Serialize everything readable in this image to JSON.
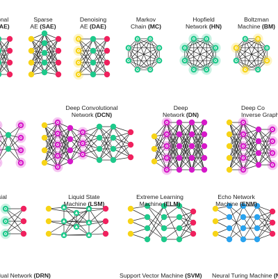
{
  "colors": {
    "input": "#f7d417",
    "hidden": "#1ec98b",
    "output": "#f0215e",
    "memory": "#2aa3ef",
    "kernel": "#d619c9",
    "edge": "#222222",
    "bg": "#ffffff"
  },
  "networks": [
    {
      "key": "ae_partial",
      "line1": "onal",
      "line2": "(AE)"
    },
    {
      "key": "sae",
      "line1": "Sparse",
      "line2_text": "AE ",
      "line2_abbr": "(SAE)"
    },
    {
      "key": "dae",
      "line1": "Denoising",
      "line2_text": "AE ",
      "line2_abbr": "(DAE)"
    },
    {
      "key": "mc",
      "line1": "Markov",
      "line2_text": "Chain ",
      "line2_abbr": "(MC)"
    },
    {
      "key": "hn",
      "line1": "Hopfield",
      "line2_text": "Network ",
      "line2_abbr": "(HN)"
    },
    {
      "key": "bm",
      "line1": "Boltzman",
      "line2_text": "Machine ",
      "line2_abbr": "(BM)"
    },
    {
      "key": "dcn",
      "line1": "Deep Convolutional",
      "line2_text": "Network ",
      "line2_abbr": "(DCN)"
    },
    {
      "key": "dn",
      "line1": "Deep",
      "line2_text": "Network ",
      "line2_abbr": "(DN)"
    },
    {
      "key": "dcign",
      "line1": "Deep Co",
      "line2_text": "Inverse Graphic",
      "line2_abbr": ""
    },
    {
      "key": "lsm",
      "line1": "Liquid State",
      "line2_text": "Machine ",
      "line2_abbr": "(LSM)"
    },
    {
      "key": "elm",
      "line1": "Extreme Learning",
      "line2_text": "Machine ",
      "line2_abbr": "(ELM)"
    },
    {
      "key": "esn",
      "line1": "Echo Network",
      "line2_text": "Machine ",
      "line2_abbr": "(ENM)"
    },
    {
      "key": "left_mid",
      "line1": "sial",
      "line2_text": "",
      "line2_abbr": ""
    },
    {
      "key": "drn",
      "line1_text": "dual Network ",
      "line1_abbr": "(DRN)"
    },
    {
      "key": "svm",
      "line1_text": "Support Vector Machine ",
      "line1_abbr": "(SVM)"
    },
    {
      "key": "ntm",
      "line1_text": "Neural Turing Machine ",
      "line1_abbr": "(N"
    }
  ]
}
